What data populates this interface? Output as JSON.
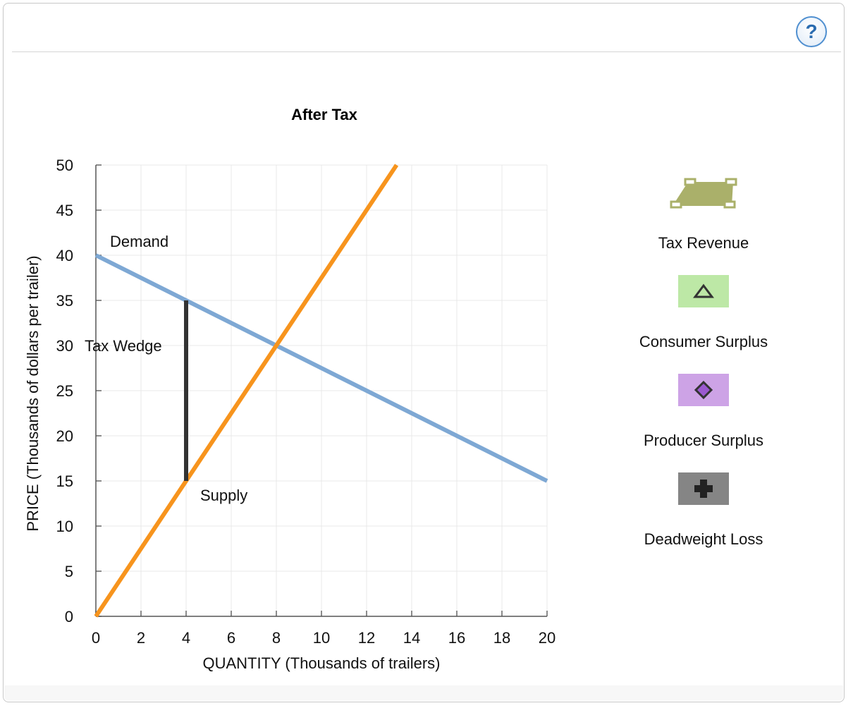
{
  "chart_data": {
    "type": "line",
    "title": "After Tax",
    "xlabel": "QUANTITY (Thousands of trailers)",
    "ylabel": "PRICE (Thousands of dollars per trailer)",
    "xlim": [
      0,
      20
    ],
    "ylim": [
      0,
      50
    ],
    "xticks": [
      "0",
      "2",
      "4",
      "6",
      "8",
      "10",
      "12",
      "14",
      "16",
      "18",
      "20"
    ],
    "yticks": [
      "0",
      "5",
      "10",
      "15",
      "20",
      "25",
      "30",
      "35",
      "40",
      "45",
      "50"
    ],
    "grid": true,
    "series": [
      {
        "name": "Demand",
        "color": "#7ea8d4",
        "points": [
          [
            0,
            40
          ],
          [
            20,
            15
          ]
        ]
      },
      {
        "name": "Supply",
        "color": "#f7941d",
        "points": [
          [
            0,
            0
          ],
          [
            13.33,
            50
          ]
        ]
      }
    ],
    "annotations": [
      {
        "text": "Tax Wedge",
        "type": "vertical-segment",
        "x": 4,
        "y_from": 15,
        "y_to": 35,
        "color": "#333333"
      }
    ]
  },
  "legend": {
    "items": [
      {
        "label": "Tax Revenue",
        "icon": "trapezoid-handles-icon",
        "color": "#aab06a"
      },
      {
        "label": "Consumer Surplus",
        "icon": "triangle-icon",
        "color": "#bde8a6"
      },
      {
        "label": "Producer Surplus",
        "icon": "diamond-icon",
        "color": "#cda3e6"
      },
      {
        "label": "Deadweight Loss",
        "icon": "plus-icon",
        "color": "#858585"
      }
    ]
  },
  "toolbar": {
    "help_label": "?"
  }
}
